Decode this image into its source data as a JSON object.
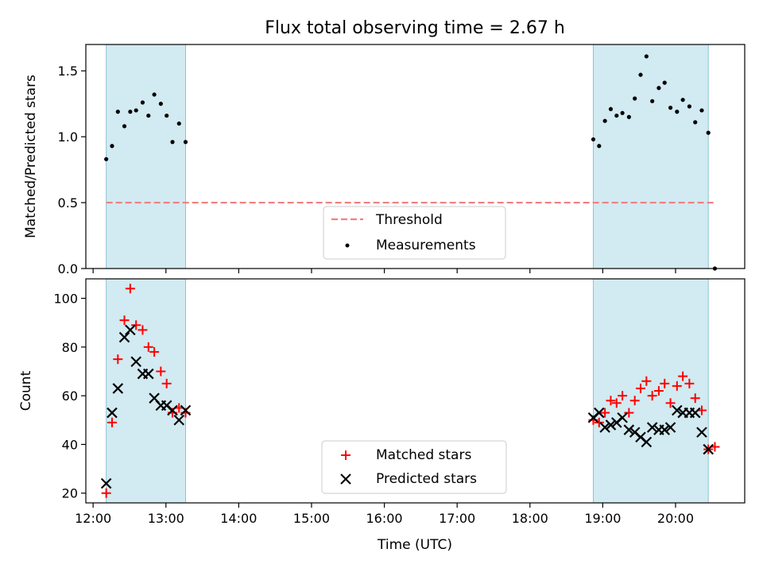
{
  "chart_data": [
    {
      "panel": "top",
      "type": "scatter",
      "title": "Flux total observing time = 2.67 h",
      "xlabel": "",
      "ylabel": "Matched/Predicted stars",
      "ylim": [
        0,
        1.7
      ],
      "yticks": [
        0.0,
        0.5,
        1.0,
        1.5
      ],
      "ytick_labels": [
        "0.0",
        "0.5",
        "1.0",
        "1.5"
      ],
      "xlim": [
        11.9,
        20.95
      ],
      "xticks": [
        12,
        13,
        14,
        15,
        16,
        17,
        18,
        19,
        20
      ],
      "shaded_spans": [
        [
          12.18,
          13.27
        ],
        [
          18.87,
          20.45
        ]
      ],
      "shade_color": "#add8e6",
      "threshold": {
        "name": "Threshold",
        "y": 0.5,
        "x_range": [
          12.18,
          20.55
        ],
        "color": "#f08080"
      },
      "series": [
        {
          "name": "Measurements",
          "color": "#000000",
          "x": [
            12.18,
            12.26,
            12.34,
            12.43,
            12.51,
            12.59,
            12.68,
            12.76,
            12.84,
            12.93,
            13.01,
            13.09,
            13.18,
            13.27,
            18.87,
            18.95,
            19.03,
            19.11,
            19.19,
            19.27,
            19.36,
            19.44,
            19.52,
            19.6,
            19.68,
            19.77,
            19.85,
            19.93,
            20.02,
            20.1,
            20.19,
            20.27,
            20.36,
            20.45,
            20.54
          ],
          "y": [
            0.83,
            0.93,
            1.19,
            1.08,
            1.19,
            1.2,
            1.26,
            1.16,
            1.32,
            1.25,
            1.16,
            0.96,
            1.1,
            0.96,
            0.98,
            0.93,
            1.12,
            1.21,
            1.16,
            1.18,
            1.15,
            1.29,
            1.47,
            1.61,
            1.27,
            1.37,
            1.41,
            1.22,
            1.19,
            1.28,
            1.23,
            1.11,
            1.2,
            1.03,
            0.0
          ]
        }
      ],
      "legend": [
        "Threshold",
        "Measurements"
      ],
      "legend_position": "lower center"
    },
    {
      "panel": "bottom",
      "type": "scatter",
      "title": "",
      "xlabel": "Time (UTC)",
      "ylabel": "Count",
      "ylim": [
        16,
        108
      ],
      "yticks": [
        20,
        40,
        60,
        80,
        100
      ],
      "ytick_labels": [
        "20",
        "40",
        "60",
        "80",
        "100"
      ],
      "xlim": [
        11.9,
        20.95
      ],
      "xticks": [
        12,
        13,
        14,
        15,
        16,
        17,
        18,
        19,
        20
      ],
      "xtick_labels": [
        "12:00",
        "13:00",
        "14:00",
        "15:00",
        "16:00",
        "17:00",
        "18:00",
        "19:00",
        "20:00"
      ],
      "shaded_spans": [
        [
          12.18,
          13.27
        ],
        [
          18.87,
          20.45
        ]
      ],
      "shade_color": "#add8e6",
      "series": [
        {
          "name": "Matched stars",
          "marker": "plus",
          "color": "#ff0000",
          "x": [
            12.18,
            12.26,
            12.34,
            12.43,
            12.51,
            12.59,
            12.68,
            12.76,
            12.84,
            12.93,
            13.01,
            13.09,
            13.18,
            13.27,
            18.87,
            18.95,
            19.03,
            19.11,
            19.19,
            19.27,
            19.36,
            19.44,
            19.52,
            19.6,
            19.68,
            19.77,
            19.85,
            19.93,
            20.02,
            20.1,
            20.19,
            20.27,
            20.36,
            20.45,
            20.54
          ],
          "y": [
            20,
            49,
            75,
            91,
            104,
            89,
            87,
            80,
            78,
            70,
            65,
            53,
            55,
            53,
            50,
            49,
            53,
            58,
            57,
            60,
            53,
            58,
            63,
            66,
            60,
            62,
            65,
            57,
            64,
            68,
            65,
            59,
            54,
            38,
            39
          ]
        },
        {
          "name": "Predicted stars",
          "marker": "x",
          "color": "#000000",
          "x": [
            12.18,
            12.26,
            12.34,
            12.43,
            12.51,
            12.59,
            12.68,
            12.76,
            12.84,
            12.93,
            13.01,
            13.09,
            13.18,
            13.27,
            18.87,
            18.95,
            19.03,
            19.11,
            19.19,
            19.27,
            19.36,
            19.44,
            19.52,
            19.6,
            19.68,
            19.77,
            19.85,
            19.93,
            20.02,
            20.1,
            20.19,
            20.27,
            20.36,
            20.45
          ],
          "y": [
            24,
            53,
            63,
            84,
            87,
            74,
            69,
            69,
            59,
            56,
            56,
            54,
            50,
            54,
            51,
            53,
            47,
            48,
            49,
            51,
            46,
            45,
            43,
            41,
            47,
            46,
            46,
            47,
            54,
            53,
            53,
            53,
            45,
            38
          ]
        }
      ],
      "legend": [
        "Matched stars",
        "Predicted stars"
      ],
      "legend_position": "lower center"
    }
  ]
}
